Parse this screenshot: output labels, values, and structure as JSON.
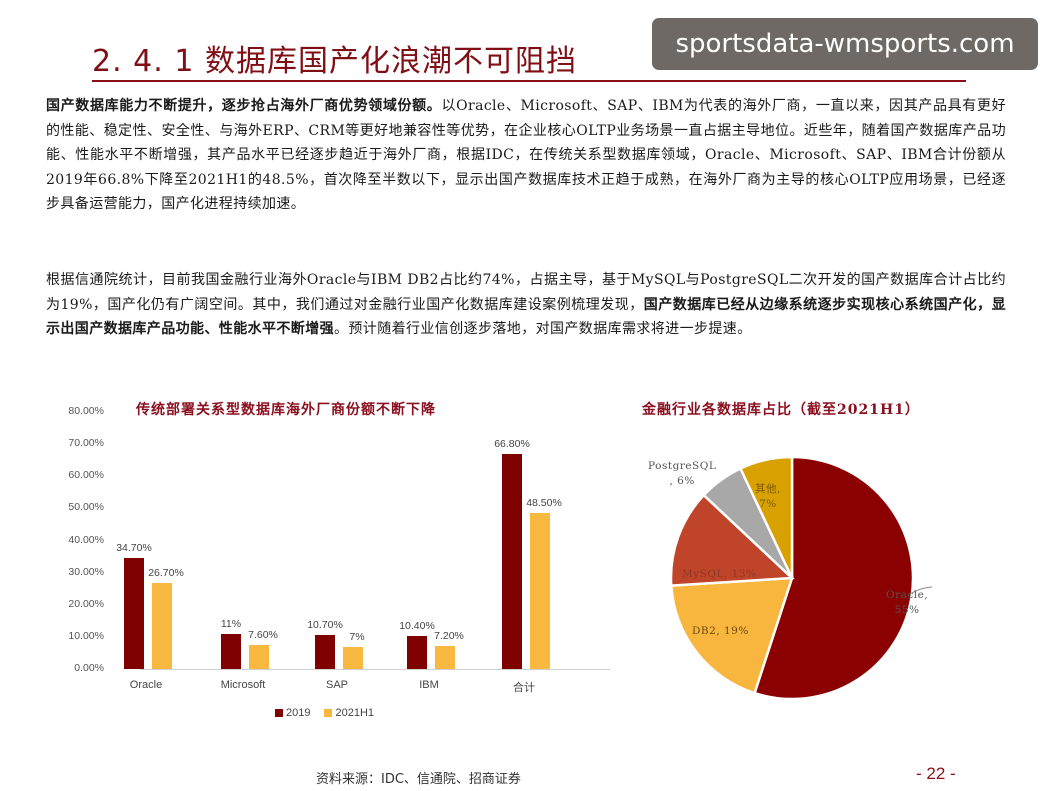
{
  "header": {
    "title": "2. 4. 1  数据库国产化浪潮不可阻挡",
    "watermark": "sportsdata-wmsports.com"
  },
  "paragraphs": {
    "p1": {
      "bold": "国产数据库能力不断提升，逐步抢占海外厂商优势领域份额。",
      "text": "以Oracle、Microsoft、SAP、IBM为代表的海外厂商，一直以来，因其产品具有更好的性能、稳定性、安全性、与海外ERP、CRM等更好地兼容性等优势，在企业核心OLTP业务场景一直占据主导地位。近些年，随着国产数据库产品功能、性能水平不断增强，其产品水平已经逐步趋近于海外厂商，根据IDC，在传统关系型数据库领域，Oracle、Microsoft、SAP、IBM合计份额从2019年66.8%下降至2021H1的48.5%，首次降至半数以下，显示出国产数据库技术正趋于成熟，在海外厂商为主导的核心OLTP应用场景，已经逐步具备运营能力，国产化进程持续加速。"
    },
    "p2": {
      "text1": "根据信通院统计，目前我国金融行业海外Oracle与IBM DB2占比约74%，占据主导，基于MySQL与PostgreSQL二次开发的国产数据库合计占比约为19%，国产化仍有广阔空间。其中，我们通过对金融行业国产化数据库建设案例梳理发现，",
      "bold": "国产数据库已经从边缘系统逐步实现核心系统国产化，显示出国产数据库产品功能、性能水平不断增强",
      "text2": "。预计随着行业信创逐步落地，对国产数据库需求将进一步提速。"
    }
  },
  "chart_data": [
    {
      "type": "bar",
      "title": "传统部署关系型数据库海外厂商份额不断下降",
      "categories": [
        "Oracle",
        "Microsoft",
        "SAP",
        "IBM",
        "合计"
      ],
      "series": [
        {
          "name": "2019",
          "color": "#7f0000",
          "values": [
            34.7,
            11.0,
            10.7,
            10.4,
            66.8
          ],
          "labels": [
            "34.70%",
            "11%",
            "10.70%",
            "10.40%",
            "66.80%"
          ]
        },
        {
          "name": "2021H1",
          "color": "#f9b83f",
          "values": [
            26.7,
            7.6,
            7.0,
            7.2,
            48.5
          ],
          "labels": [
            "26.70%",
            "7.60%",
            "7%",
            "7.20%",
            "48.50%"
          ]
        }
      ],
      "yticks": [
        "80.00%",
        "70.00%",
        "60.00%",
        "50.00%",
        "40.00%",
        "30.00%",
        "20.00%",
        "10.00%",
        "0.00%"
      ],
      "ylim": [
        0,
        80
      ],
      "xlabel": "",
      "ylabel": "",
      "grid": false,
      "legend_position": "bottom"
    },
    {
      "type": "pie",
      "title": "金融行业各数据库占比（截至2021H1）",
      "slices": [
        {
          "name": "Oracle",
          "value": 55,
          "label": "Oracle, 55%",
          "color": "#8b0000"
        },
        {
          "name": "DB2",
          "value": 19,
          "label": "DB2, 19%",
          "color": "#f8b63f"
        },
        {
          "name": "MySQL",
          "value": 13,
          "label": "MySQL, 13%",
          "color": "#c0442a"
        },
        {
          "name": "PostgreSQL",
          "value": 6,
          "label": "PostgreSQL, 6%",
          "color": "#a8a8a8"
        },
        {
          "name": "其他",
          "value": 7,
          "label": "其他, 7%",
          "color": "#d9a100"
        }
      ]
    }
  ],
  "pie_labels": {
    "oracle_line1": "Oracle,",
    "oracle_line2": "55%",
    "db2": "DB2, 19%",
    "mysql": "MySQL, 13%",
    "pg_line1": "PostgreSQL",
    "pg_line2": ", 6%",
    "other_line1": "其他,",
    "other_line2": "7%"
  },
  "footer": {
    "source": "资料来源：IDC、信通院、招商证券",
    "page": "- 22 -"
  }
}
